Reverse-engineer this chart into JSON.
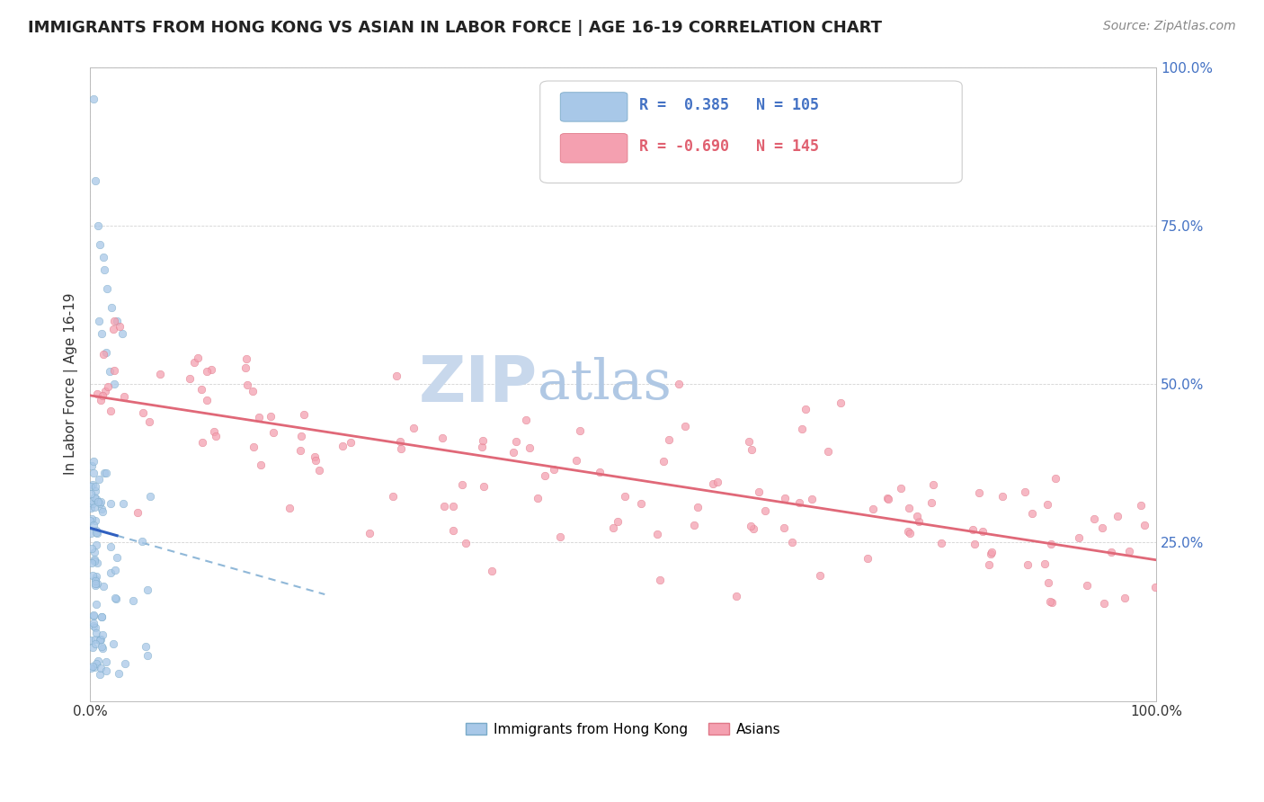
{
  "title": "IMMIGRANTS FROM HONG KONG VS ASIAN IN LABOR FORCE | AGE 16-19 CORRELATION CHART",
  "source": "Source: ZipAtlas.com",
  "ylabel": "In Labor Force | Age 16-19",
  "xlim": [
    0.0,
    1.0
  ],
  "ylim": [
    0.0,
    1.0
  ],
  "yticks": [
    0.0,
    0.25,
    0.5,
    0.75,
    1.0
  ],
  "right_ytick_labels": [
    "",
    "25.0%",
    "50.0%",
    "75.0%",
    "100.0%"
  ],
  "hk_R": 0.385,
  "hk_N": 105,
  "asian_R": -0.69,
  "asian_N": 145,
  "dot_size": 38,
  "hk_dot_color": "#a8c8e8",
  "hk_dot_edge": "#7aaac8",
  "asian_dot_color": "#f4a0b0",
  "asian_dot_edge": "#e07888",
  "hk_line_color": "#3060c0",
  "hk_dash_color": "#90b8d8",
  "asian_line_color": "#e06878",
  "title_fontsize": 13,
  "source_fontsize": 10,
  "axis_label_fontsize": 11,
  "legend_fontsize": 12,
  "watermark_zip_color": "#c8d8ec",
  "watermark_atlas_color": "#b0c8e4",
  "watermark_fontsize": 52
}
